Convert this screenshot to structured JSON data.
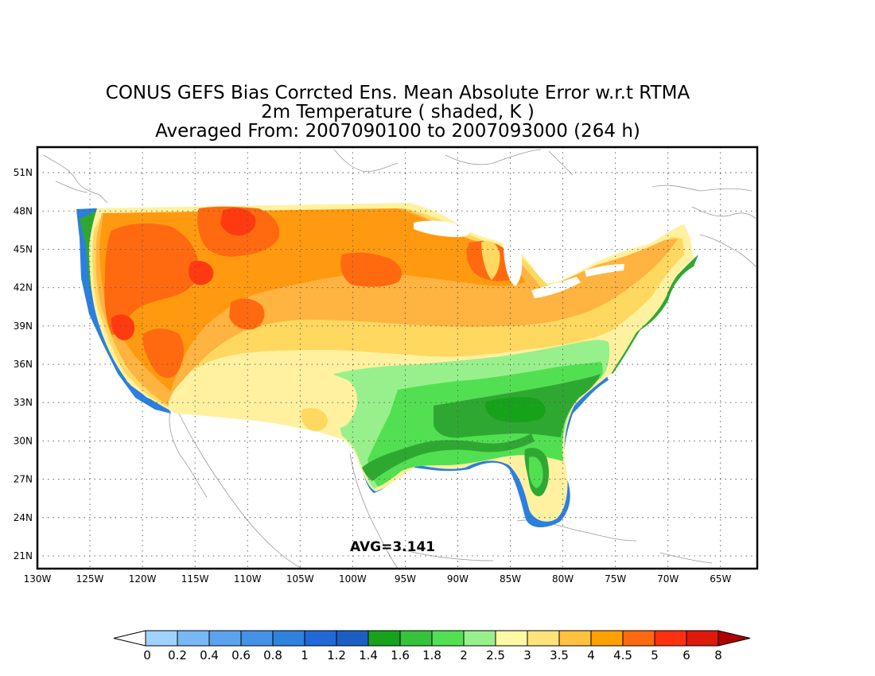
{
  "title": {
    "line1": "CONUS GEFS Bias Corrcted Ens. Mean Absolute Error w.r.t RTMA",
    "line2": "2m Temperature ( shaded, K )",
    "line3": "Averaged From: 2007090100 to 2007093000 (264 h)"
  },
  "annotation": {
    "avg_text": "AVG=3.141"
  },
  "axes": {
    "lon_labels": [
      "130W",
      "125W",
      "120W",
      "115W",
      "110W",
      "105W",
      "100W",
      "95W",
      "90W",
      "85W",
      "80W",
      "75W",
      "70W",
      "65W"
    ],
    "lat_labels": [
      "51N",
      "48N",
      "45N",
      "42N",
      "39N",
      "36N",
      "33N",
      "30N",
      "27N",
      "24N",
      "21N"
    ],
    "lon_range": [
      -130,
      -61.5
    ],
    "lat_range": [
      20,
      53
    ],
    "grid": "dotted"
  },
  "colorbar": {
    "labels": [
      "0",
      "0.2",
      "0.4",
      "0.6",
      "0.8",
      "1",
      "1.2",
      "1.4",
      "1.6",
      "1.8",
      "2",
      "2.5",
      "3",
      "3.5",
      "4",
      "4.5",
      "5",
      "6",
      "8"
    ],
    "colors": [
      "#9fd3ff",
      "#78b8f5",
      "#5ca3ee",
      "#4492e6",
      "#2f82dd",
      "#2269d8",
      "#1b5fc4",
      "#17a21c",
      "#36c23a",
      "#52e052",
      "#98f08c",
      "#fff9a6",
      "#ffe27a",
      "#ffc140",
      "#ffa000",
      "#ff6a10",
      "#ff3010",
      "#dd1a0c",
      "#b00000"
    ],
    "under_color": "#ffffff",
    "over_color": "#b00000"
  },
  "map_legend_colors": {
    "coast": "#2a7fe0",
    "coast_green": "#2fa832",
    "south_green": "#5ad45a",
    "light_green": "#98f08c",
    "pale_yellow": "#fff1a0",
    "yellow": "#ffd860",
    "orange_light": "#ffb340",
    "orange": "#ff9a10",
    "orange_dark": "#ff6a10",
    "red": "#ff3a10"
  }
}
